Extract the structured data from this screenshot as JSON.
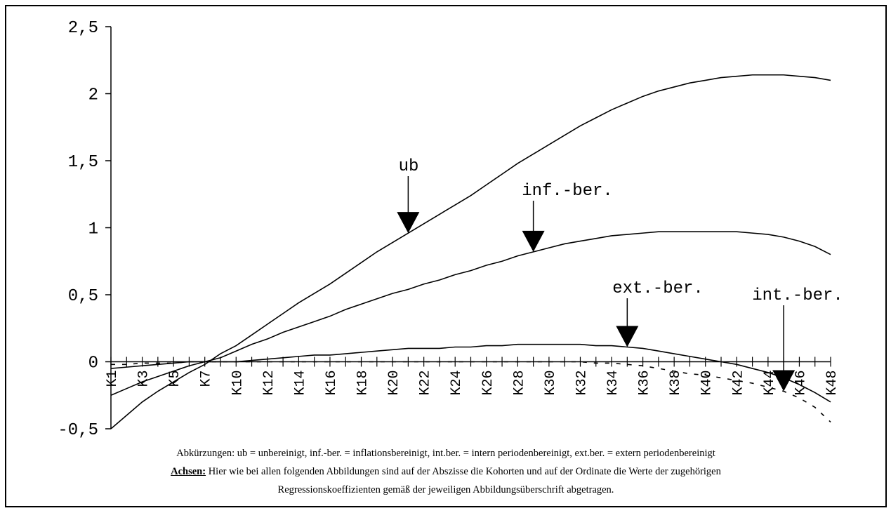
{
  "chart_data": {
    "type": "line",
    "categories": [
      "K1",
      null,
      "K3",
      null,
      "K5",
      null,
      "K7",
      null,
      "K10",
      null,
      "K12",
      null,
      "K14",
      null,
      "K16",
      null,
      "K18",
      null,
      "K20",
      null,
      "K22",
      null,
      "K24",
      null,
      "K26",
      null,
      "K28",
      null,
      "K30",
      null,
      "K32",
      null,
      "K34",
      null,
      "K36",
      null,
      "K38",
      null,
      "K40",
      null,
      "K42",
      null,
      "K44",
      null,
      "K46",
      null,
      "K48"
    ],
    "series": [
      {
        "name": "ub",
        "color": "#000000",
        "values": [
          -0.5,
          -0.4,
          -0.3,
          -0.22,
          -0.15,
          -0.08,
          -0.02,
          0.06,
          0.12,
          0.2,
          0.28,
          0.36,
          0.44,
          0.51,
          0.58,
          0.66,
          0.74,
          0.82,
          0.89,
          0.96,
          1.03,
          1.1,
          1.17,
          1.24,
          1.32,
          1.4,
          1.48,
          1.55,
          1.62,
          1.69,
          1.76,
          1.82,
          1.88,
          1.93,
          1.98,
          2.02,
          2.05,
          2.08,
          2.1,
          2.12,
          2.13,
          2.14,
          2.14,
          2.14,
          2.13,
          2.12,
          2.1
        ]
      },
      {
        "name": "inf.-ber.",
        "color": "#000000",
        "values": [
          -0.25,
          -0.2,
          -0.15,
          -0.11,
          -0.07,
          -0.03,
          0,
          0.03,
          0.08,
          0.13,
          0.17,
          0.22,
          0.26,
          0.3,
          0.34,
          0.39,
          0.43,
          0.47,
          0.51,
          0.54,
          0.58,
          0.61,
          0.65,
          0.68,
          0.72,
          0.75,
          0.79,
          0.82,
          0.85,
          0.88,
          0.9,
          0.92,
          0.94,
          0.95,
          0.96,
          0.97,
          0.97,
          0.97,
          0.97,
          0.97,
          0.97,
          0.96,
          0.95,
          0.93,
          0.9,
          0.86,
          0.8
        ]
      },
      {
        "name": "ext.-ber.",
        "color": "#000000",
        "values": [
          -0.05,
          -0.04,
          -0.03,
          -0.02,
          -0.01,
          0,
          0,
          0,
          0,
          0.01,
          0.02,
          0.03,
          0.04,
          0.05,
          0.05,
          0.06,
          0.07,
          0.08,
          0.09,
          0.1,
          0.1,
          0.1,
          0.11,
          0.11,
          0.12,
          0.12,
          0.13,
          0.13,
          0.13,
          0.13,
          0.13,
          0.12,
          0.12,
          0.11,
          0.1,
          0.08,
          0.06,
          0.04,
          0.02,
          0,
          -0.02,
          -0.05,
          -0.08,
          -0.12,
          -0.17,
          -0.23,
          -0.3
        ]
      },
      {
        "name": "int.-ber.",
        "color": "#000000",
        "values": [
          -0.02,
          -0.02,
          -0.01,
          -0.01,
          -0.01,
          0,
          0,
          0,
          0,
          0,
          0,
          0,
          0,
          0,
          0,
          0,
          0,
          0,
          0,
          0,
          0,
          0,
          0,
          0,
          0,
          0,
          0,
          0,
          0,
          0,
          0,
          -0.01,
          -0.01,
          -0.02,
          -0.03,
          -0.05,
          -0.07,
          -0.09,
          -0.1,
          -0.12,
          -0.14,
          -0.16,
          -0.19,
          -0.22,
          -0.27,
          -0.34,
          -0.45
        ]
      }
    ],
    "ylim": [
      -0.5,
      2.5
    ],
    "yticks": [
      {
        "value": -0.5,
        "label": "-0,5"
      },
      0,
      {
        "value": 0.5,
        "label": "0,5"
      },
      1,
      {
        "value": 1.5,
        "label": "1,5"
      },
      2,
      {
        "value": 2.5,
        "label": "2,5"
      }
    ],
    "grid": false
  },
  "notes": {
    "abbreviations": "Abkürzungen: ub = unbereinigt, inf.-ber. = inflationsbereinigt, int.ber. = intern periodenbereinigt, ext.ber. = extern periodenbereinigt",
    "axes_label": "Achsen:",
    "axes_text_1": "Hier wie bei allen folgenden Abbildungen sind auf der Abszisse die Kohorten und auf der Ordinate die Werte der zugehörigen",
    "axes_text_2": "Regressionskoeffizienten gemäß der jeweiligen Abbildungsüberschrift abgetragen."
  }
}
